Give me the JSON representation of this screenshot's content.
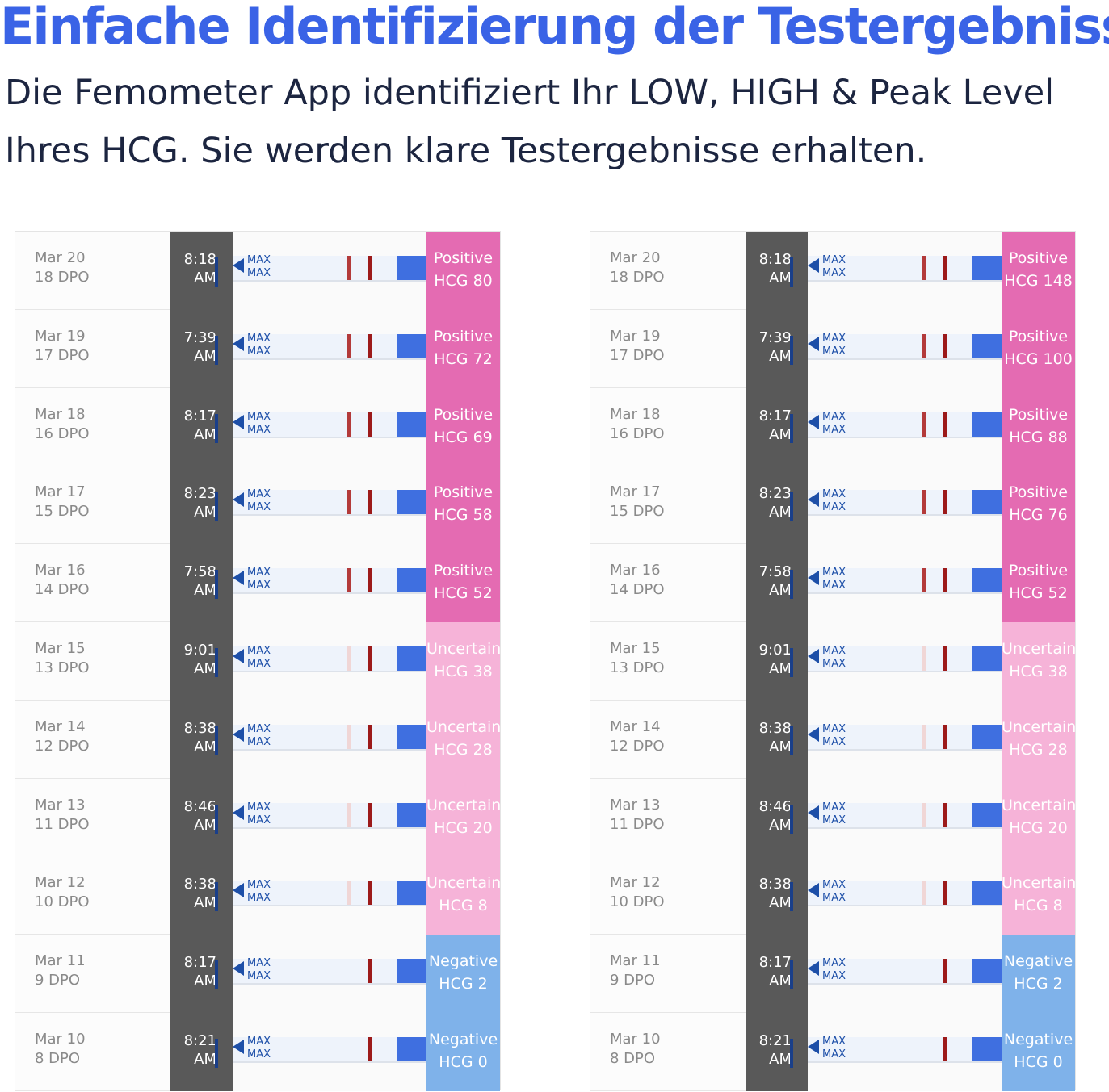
{
  "header": {
    "title": "Einfache Identifizierung der Testergebnisse",
    "subtitle_lines": [
      "Die Femometer App identifiziert Ihr LOW, HIGH & Peak Level",
      "Ihres HCG. Sie werden klare Testergebnisse erhalten."
    ]
  },
  "panels": [
    {
      "rows": [
        {
          "date": "Mar 20",
          "dpo": "18 DPO",
          "time": "8:18",
          "ampm": "AM",
          "marker_top": "MAX",
          "marker_bottom": "MAX",
          "result": "Positive",
          "hcg": "HCG 80"
        },
        {
          "date": "Mar 19",
          "dpo": "17 DPO",
          "time": "7:39",
          "ampm": "AM",
          "marker_top": "MAX",
          "marker_bottom": "MAX",
          "result": "Positive",
          "hcg": "HCG 72"
        },
        {
          "date": "Mar 18",
          "dpo": "16 DPO",
          "time": "8:17",
          "ampm": "AM",
          "marker_top": "MAX",
          "marker_bottom": "MAX",
          "result": "Positive",
          "hcg": "HCG 69"
        },
        {
          "date": "Mar 17",
          "dpo": "15 DPO",
          "time": "8:23",
          "ampm": "AM",
          "marker_top": "MAX",
          "marker_bottom": "MAX",
          "result": "Positive",
          "hcg": "HCG 58"
        },
        {
          "date": "Mar 16",
          "dpo": "14 DPO",
          "time": "7:58",
          "ampm": "AM",
          "marker_top": "MAX",
          "marker_bottom": "MAX",
          "result": "Positive",
          "hcg": "HCG 52"
        },
        {
          "date": "Mar 15",
          "dpo": "13 DPO",
          "time": "9:01",
          "ampm": "AM",
          "marker_top": "MAX",
          "marker_bottom": "MAX",
          "result": "Uncertain",
          "hcg": "HCG 38"
        },
        {
          "date": "Mar 14",
          "dpo": "12 DPO",
          "time": "8:38",
          "ampm": "AM",
          "marker_top": "MAX",
          "marker_bottom": "MAX",
          "result": "Uncertain",
          "hcg": "HCG 28"
        },
        {
          "date": "Mar 13",
          "dpo": "11 DPO",
          "time": "8:46",
          "ampm": "AM",
          "marker_top": "MAX",
          "marker_bottom": "MAX",
          "result": "Uncertain",
          "hcg": "HCG 20"
        },
        {
          "date": "Mar 12",
          "dpo": "10 DPO",
          "time": "8:38",
          "ampm": "AM",
          "marker_top": "MAX",
          "marker_bottom": "MAX",
          "result": "Uncertain",
          "hcg": "HCG 8"
        },
        {
          "date": "Mar 11",
          "dpo": "9 DPO",
          "time": "8:17",
          "ampm": "AM",
          "marker_top": "MAX",
          "marker_bottom": "MAX",
          "result": "Negative",
          "hcg": "HCG 2"
        },
        {
          "date": "Mar 10",
          "dpo": "8 DPO",
          "time": "8:21",
          "ampm": "AM",
          "marker_top": "MAX",
          "marker_bottom": "MAX",
          "result": "Negative",
          "hcg": "HCG 0"
        }
      ]
    },
    {
      "rows": [
        {
          "date": "Mar 20",
          "dpo": "18 DPO",
          "time": "8:18",
          "ampm": "AM",
          "marker_top": "MAX",
          "marker_bottom": "MAX",
          "result": "Positive",
          "hcg": "HCG 148"
        },
        {
          "date": "Mar 19",
          "dpo": "17 DPO",
          "time": "7:39",
          "ampm": "AM",
          "marker_top": "MAX",
          "marker_bottom": "MAX",
          "result": "Positive",
          "hcg": "HCG 100"
        },
        {
          "date": "Mar 18",
          "dpo": "16 DPO",
          "time": "8:17",
          "ampm": "AM",
          "marker_top": "MAX",
          "marker_bottom": "MAX",
          "result": "Positive",
          "hcg": "HCG 88"
        },
        {
          "date": "Mar 17",
          "dpo": "15 DPO",
          "time": "8:23",
          "ampm": "AM",
          "marker_top": "MAX",
          "marker_bottom": "MAX",
          "result": "Positive",
          "hcg": "HCG 76"
        },
        {
          "date": "Mar 16",
          "dpo": "14 DPO",
          "time": "7:58",
          "ampm": "AM",
          "marker_top": "MAX",
          "marker_bottom": "MAX",
          "result": "Positive",
          "hcg": "HCG 52"
        },
        {
          "date": "Mar 15",
          "dpo": "13 DPO",
          "time": "9:01",
          "ampm": "AM",
          "marker_top": "MAX",
          "marker_bottom": "MAX",
          "result": "Uncertain",
          "hcg": "HCG 38"
        },
        {
          "date": "Mar 14",
          "dpo": "12 DPO",
          "time": "8:38",
          "ampm": "AM",
          "marker_top": "MAX",
          "marker_bottom": "MAX",
          "result": "Uncertain",
          "hcg": "HCG 28"
        },
        {
          "date": "Mar 13",
          "dpo": "11 DPO",
          "time": "8:46",
          "ampm": "AM",
          "marker_top": "MAX",
          "marker_bottom": "MAX",
          "result": "Uncertain",
          "hcg": "HCG 20"
        },
        {
          "date": "Mar 12",
          "dpo": "10 DPO",
          "time": "8:38",
          "ampm": "AM",
          "marker_top": "MAX",
          "marker_bottom": "MAX",
          "result": "Uncertain",
          "hcg": "HCG 8"
        },
        {
          "date": "Mar 11",
          "dpo": "9 DPO",
          "time": "8:17",
          "ampm": "AM",
          "marker_top": "MAX",
          "marker_bottom": "MAX",
          "result": "Negative",
          "hcg": "HCG 2"
        },
        {
          "date": "Mar 10",
          "dpo": "8 DPO",
          "time": "8:21",
          "ampm": "AM",
          "marker_top": "MAX",
          "marker_bottom": "MAX",
          "result": "Negative",
          "hcg": "HCG 0"
        }
      ]
    }
  ]
}
